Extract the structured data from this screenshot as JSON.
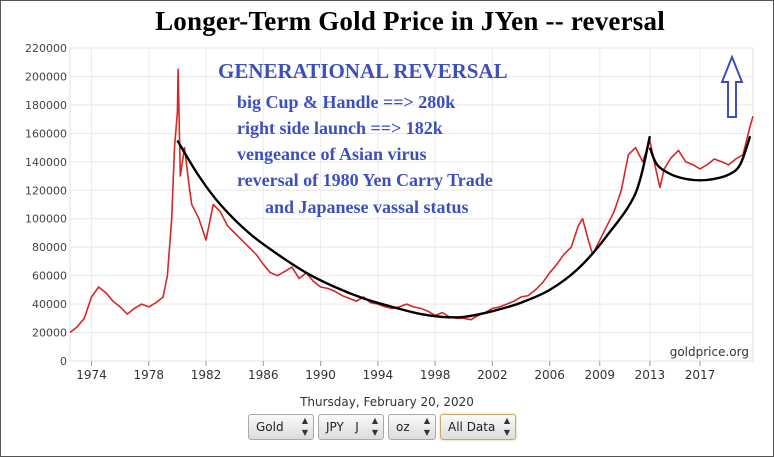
{
  "chart_data": {
    "type": "line",
    "title": "Longer-Term Gold Price in JYen -- reversal",
    "ylim": [
      0,
      220000
    ],
    "xlim": [
      1972.5,
      2020.2
    ],
    "y_ticks": [
      "0",
      "20000",
      "40000",
      "60000",
      "80000",
      "100000",
      "120000",
      "140000",
      "160000",
      "180000",
      "200000",
      "220000"
    ],
    "y_tick_values": [
      0,
      20000,
      40000,
      60000,
      80000,
      100000,
      120000,
      140000,
      160000,
      180000,
      200000,
      220000
    ],
    "x_ticks": [
      "1974",
      "1978",
      "1982",
      "1986",
      "1990",
      "1994",
      "1998",
      "2002",
      "2006",
      "2009",
      "2013",
      "2017"
    ],
    "x_tick_values": [
      1974,
      1978,
      1982,
      1986,
      1990,
      1994,
      1998,
      2002,
      2006,
      2009.5,
      2013,
      2016.5
    ],
    "grid": true,
    "series": [
      {
        "name": "",
        "color": "#d62728",
        "x": [
          1972.5,
          1973.0,
          1973.5,
          1974.0,
          1974.5,
          1975.0,
          1975.5,
          1976.0,
          1976.5,
          1977.0,
          1977.5,
          1978.0,
          1978.5,
          1979.0,
          1979.3,
          1979.6,
          1979.8,
          1980.0,
          1980.05,
          1980.2,
          1980.5,
          1980.8,
          1981.0,
          1981.5,
          1982.0,
          1982.5,
          1983.0,
          1983.5,
          1984.0,
          1984.5,
          1985.0,
          1985.5,
          1986.0,
          1986.5,
          1987.0,
          1987.5,
          1988.0,
          1988.5,
          1989.0,
          1989.5,
          1990.0,
          1990.5,
          1991.0,
          1991.5,
          1992.0,
          1992.5,
          1993.0,
          1993.5,
          1994.0,
          1994.5,
          1995.0,
          1995.5,
          1996.0,
          1996.5,
          1997.0,
          1997.5,
          1998.0,
          1998.5,
          1999.0,
          1999.5,
          2000.0,
          2000.5,
          2001.0,
          2001.5,
          2002.0,
          2002.5,
          2003.0,
          2003.5,
          2004.0,
          2004.5,
          2005.0,
          2005.5,
          2006.0,
          2006.5,
          2007.0,
          2007.5,
          2008.0,
          2008.3,
          2008.7,
          2009.0,
          2009.5,
          2010.0,
          2010.5,
          2011.0,
          2011.5,
          2012.0,
          2012.5,
          2013.0,
          2013.3,
          2013.7,
          2014.0,
          2014.5,
          2015.0,
          2015.5,
          2016.0,
          2016.5,
          2017.0,
          2017.5,
          2018.0,
          2018.5,
          2019.0,
          2019.5,
          2020.0,
          2020.2
        ],
        "values": [
          20000,
          24000,
          30000,
          45000,
          52000,
          48000,
          42000,
          38000,
          33000,
          37000,
          40000,
          38000,
          41000,
          45000,
          60000,
          100000,
          150000,
          175000,
          205000,
          130000,
          150000,
          125000,
          110000,
          100000,
          85000,
          110000,
          105000,
          95000,
          90000,
          85000,
          80000,
          75000,
          68000,
          62000,
          60000,
          63000,
          66000,
          58000,
          62000,
          56000,
          52000,
          51000,
          49000,
          46000,
          44000,
          42000,
          45000,
          41000,
          40000,
          38000,
          37000,
          38000,
          40000,
          38000,
          37000,
          35000,
          32000,
          34000,
          31000,
          30000,
          30000,
          29000,
          32000,
          34000,
          37000,
          38000,
          40000,
          42000,
          45000,
          46000,
          50000,
          55000,
          62000,
          68000,
          75000,
          80000,
          95000,
          100000,
          85000,
          75000,
          85000,
          95000,
          105000,
          120000,
          145000,
          150000,
          140000,
          155000,
          140000,
          122000,
          135000,
          143000,
          148000,
          140000,
          138000,
          135000,
          138000,
          142000,
          140000,
          138000,
          142000,
          145000,
          165000,
          172000
        ]
      }
    ],
    "overlays": {
      "cup_curve_x": [
        1980.0,
        1981.5,
        1983.0,
        1985.0,
        1987.0,
        1989.0,
        1991.0,
        1993.0,
        1995.0,
        1997.0,
        1998.5,
        2000.0,
        2002.0,
        2004.0,
        2006.0,
        2008.0,
        2010.0,
        2012.0,
        2013.0
      ],
      "cup_curve_y": [
        155000,
        130000,
        110000,
        90000,
        75000,
        62000,
        52000,
        44000,
        38000,
        33000,
        31000,
        31000,
        35000,
        41000,
        50000,
        65000,
        88000,
        118000,
        158000
      ],
      "handle_curve_x": [
        2013.0,
        2013.5,
        2014.5,
        2015.5,
        2016.5,
        2017.5,
        2018.5,
        2019.3,
        2020.0
      ],
      "handle_curve_y": [
        150000,
        138000,
        131000,
        128000,
        127000,
        128000,
        131000,
        138000,
        158000
      ]
    },
    "annotations": {
      "title": "GENERATIONAL REVERSAL",
      "lines": [
        "big Cup & Handle ==> 280k",
        "right side launch ==> 182k",
        "vengeance of Asian virus",
        "reversal of 1980 Yen Carry Trade",
        "and Japanese vassal status"
      ]
    },
    "watermark": "goldprice.org"
  },
  "date_label": "Thursday, February 20, 2020",
  "controls": {
    "metal": "Gold",
    "currency": "JPY   J",
    "unit": "oz",
    "range": "All Data"
  },
  "colors": {
    "price_line": "#d62728",
    "annotation_text": "#3d4fbf",
    "arrow": "#3d4fbf",
    "overlay_curve": "#000000"
  }
}
